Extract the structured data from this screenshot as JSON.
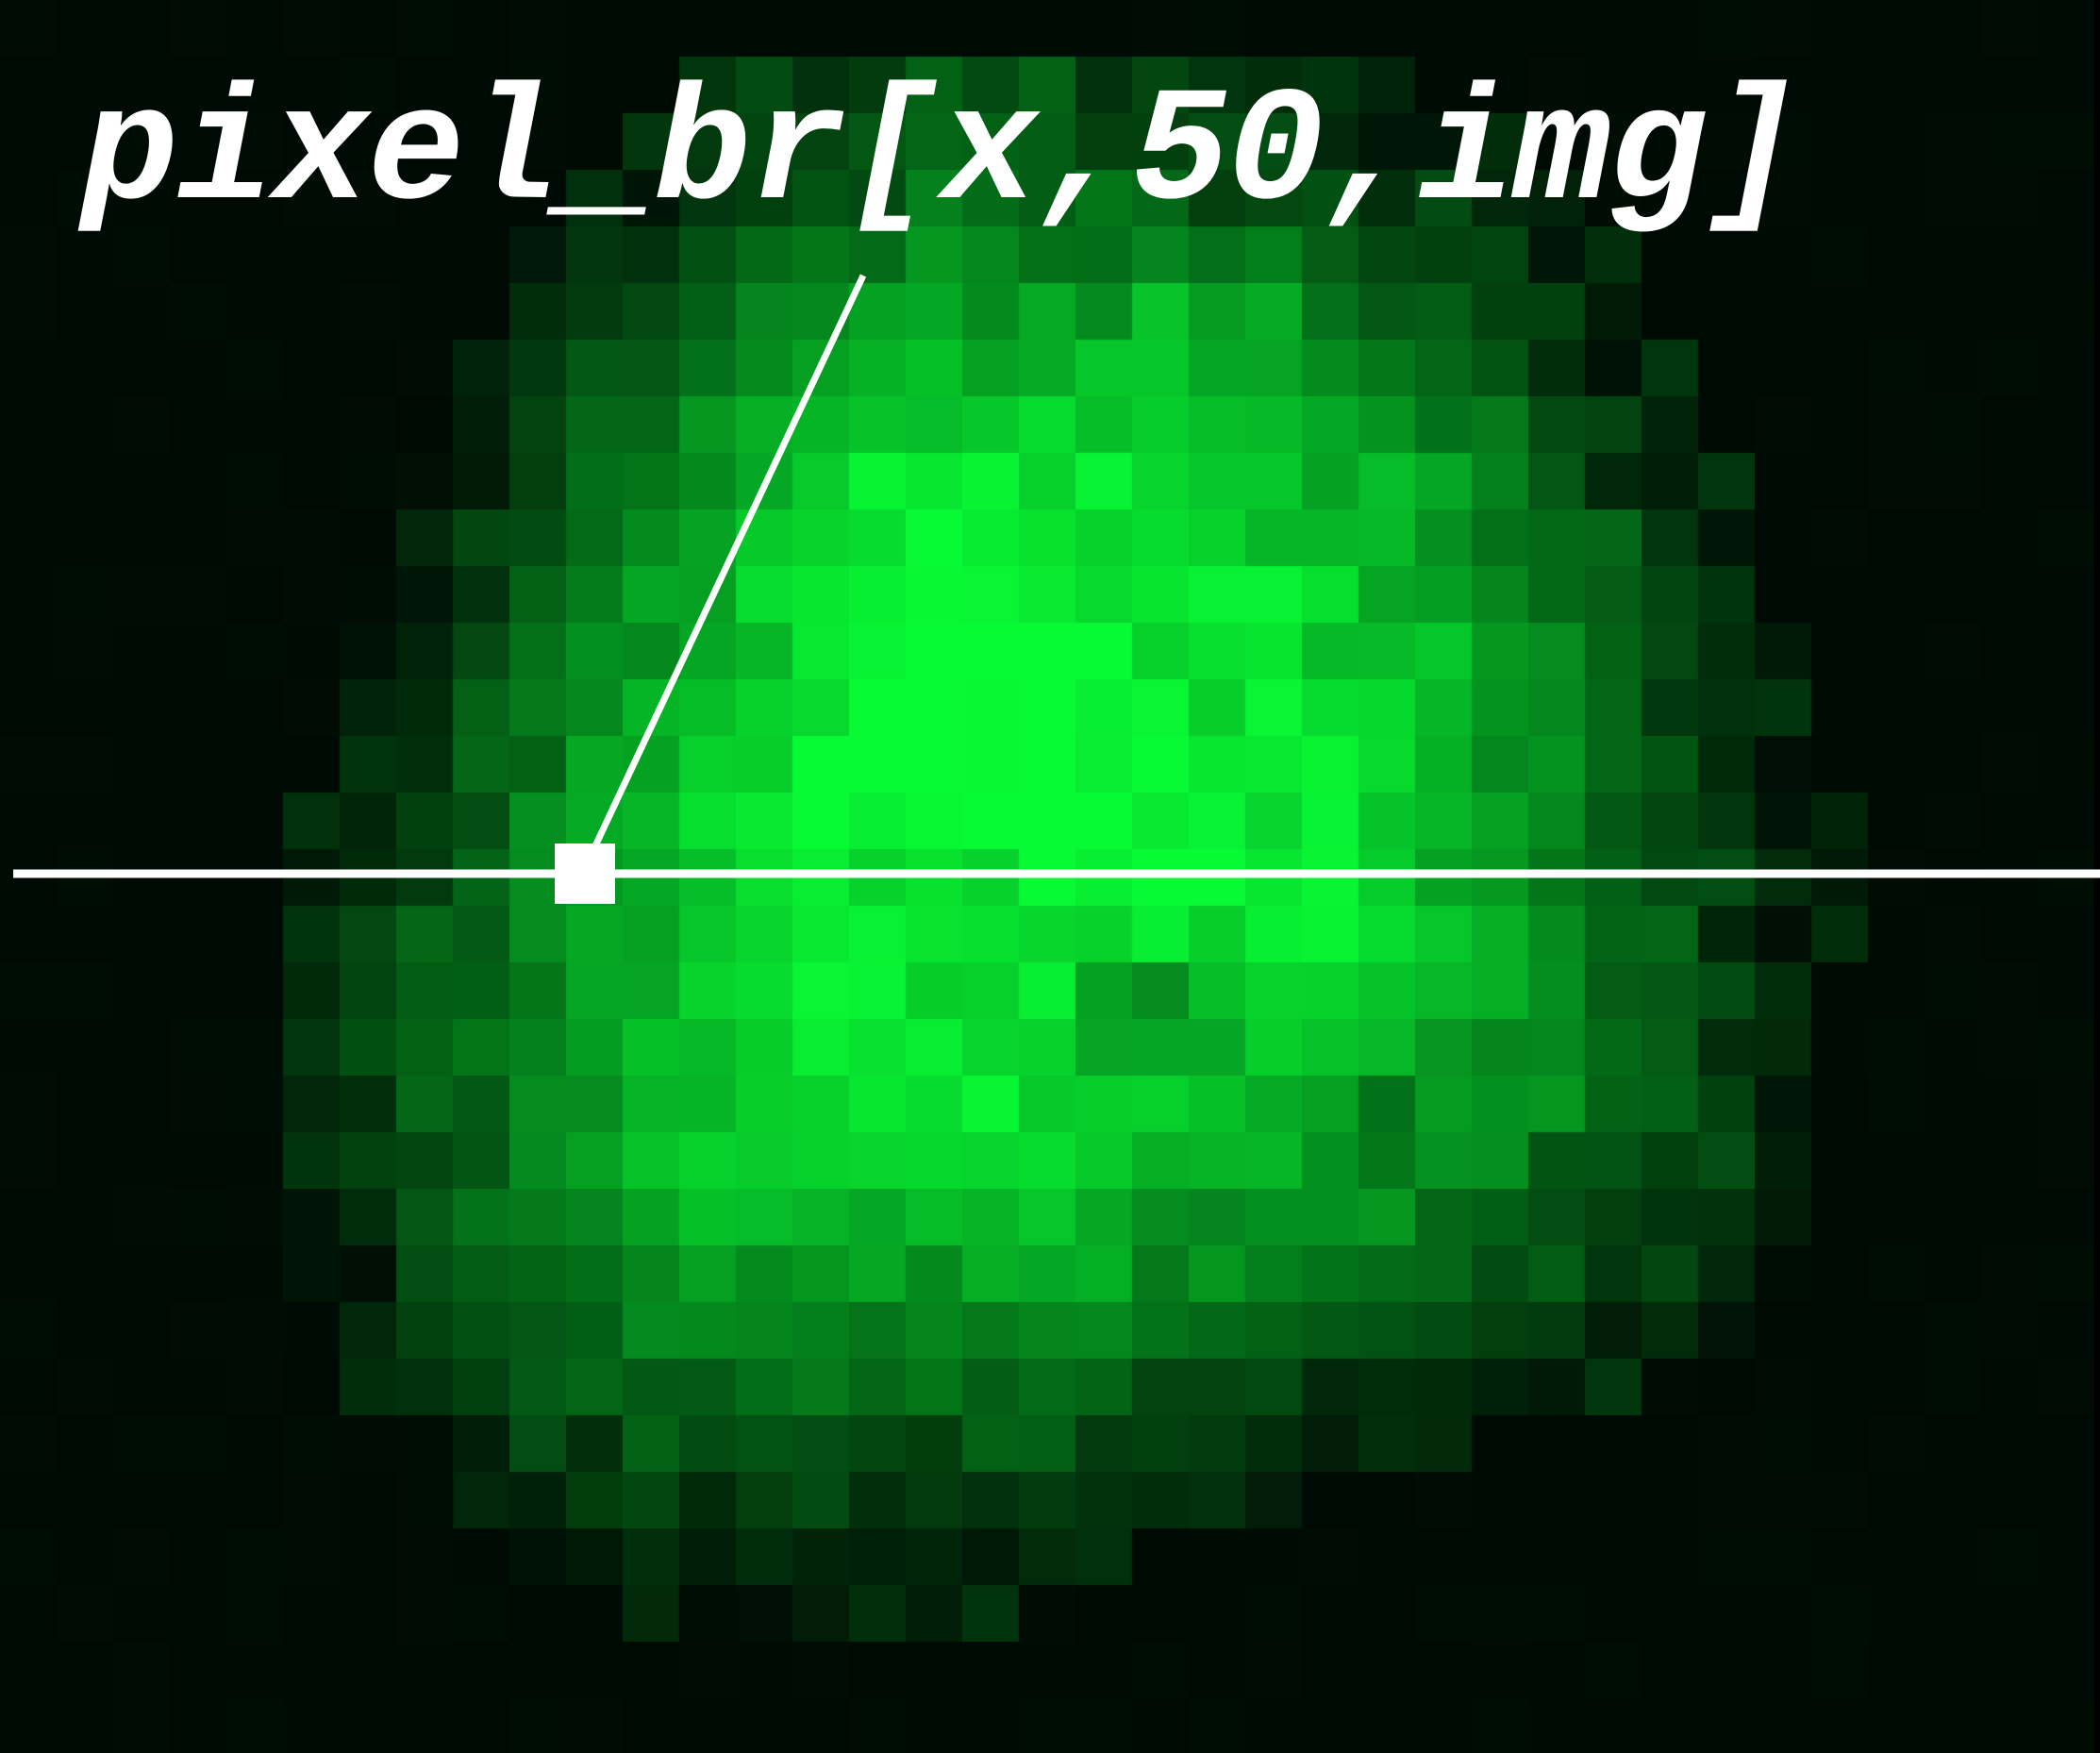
{
  "annotation": {
    "label": "pixel_br[x,50,img]"
  },
  "colors": {
    "background": "#000000",
    "annotation": "#ffffff",
    "pixel_hue": "#00ff33"
  },
  "image": {
    "grid_cols": 37,
    "grid_rows": 31,
    "brightness_rows": [
      [
        0,
        0,
        0,
        0,
        0,
        0,
        0,
        0,
        0,
        0,
        0,
        0,
        0,
        0,
        0,
        0,
        0,
        0,
        0,
        0,
        0,
        0,
        0,
        0,
        0,
        0,
        0,
        0,
        0,
        0,
        0,
        0,
        0,
        0,
        0,
        0,
        0
      ],
      [
        0,
        0,
        0,
        0,
        0,
        0,
        0,
        0,
        0,
        0,
        0,
        0,
        1,
        2,
        2,
        2,
        3,
        3,
        3,
        2,
        2,
        2,
        1,
        1,
        1,
        0,
        0,
        0,
        0,
        0,
        0,
        0,
        0,
        0,
        0,
        0,
        0
      ],
      [
        0,
        0,
        0,
        0,
        0,
        0,
        0,
        0,
        0,
        0,
        0,
        1,
        2,
        2,
        3,
        3,
        3,
        4,
        3,
        3,
        3,
        3,
        2,
        2,
        1,
        1,
        1,
        0,
        0,
        0,
        0,
        0,
        0,
        0,
        0,
        0,
        0
      ],
      [
        0,
        0,
        0,
        0,
        0,
        0,
        0,
        0,
        0,
        0,
        1,
        1,
        2,
        2,
        3,
        3,
        4,
        4,
        4,
        4,
        4,
        3,
        3,
        3,
        2,
        2,
        1,
        1,
        0,
        0,
        0,
        0,
        0,
        0,
        0,
        0,
        0
      ],
      [
        0,
        0,
        0,
        0,
        0,
        0,
        0,
        0,
        0,
        1,
        1,
        2,
        3,
        4,
        4,
        4,
        5,
        5,
        5,
        5,
        5,
        5,
        5,
        4,
        3,
        3,
        2,
        1,
        1,
        0,
        0,
        0,
        0,
        0,
        0,
        0,
        0
      ],
      [
        0,
        0,
        0,
        0,
        0,
        0,
        0,
        0,
        0,
        1,
        2,
        3,
        4,
        5,
        5,
        6,
        6,
        6,
        6,
        6,
        7,
        6,
        6,
        5,
        4,
        3,
        2,
        2,
        1,
        0,
        0,
        0,
        0,
        0,
        0,
        0,
        0
      ],
      [
        0,
        0,
        0,
        0,
        0,
        0,
        0,
        0,
        1,
        2,
        3,
        4,
        5,
        6,
        7,
        7,
        7,
        7,
        7,
        8,
        8,
        7,
        7,
        6,
        5,
        4,
        3,
        2,
        1,
        1,
        0,
        0,
        0,
        0,
        0,
        0,
        0
      ],
      [
        0,
        0,
        0,
        0,
        0,
        0,
        0,
        0,
        1,
        2,
        3,
        4,
        6,
        7,
        8,
        8,
        8,
        8,
        8,
        8,
        8,
        8,
        7,
        7,
        6,
        5,
        4,
        3,
        2,
        1,
        0,
        0,
        0,
        0,
        0,
        0,
        0
      ],
      [
        0,
        0,
        0,
        0,
        0,
        0,
        0,
        1,
        1,
        3,
        4,
        5,
        6,
        7,
        8,
        9,
        9,
        9,
        9,
        9,
        8,
        8,
        8,
        7,
        7,
        6,
        5,
        3,
        2,
        1,
        1,
        0,
        0,
        0,
        0,
        0,
        0
      ],
      [
        0,
        0,
        0,
        0,
        0,
        0,
        0,
        1,
        2,
        3,
        4,
        6,
        7,
        8,
        9,
        9,
        10,
        9,
        9,
        9,
        9,
        9,
        8,
        8,
        7,
        6,
        5,
        4,
        3,
        2,
        1,
        0,
        0,
        0,
        0,
        0,
        0
      ],
      [
        0,
        0,
        0,
        0,
        0,
        0,
        0,
        1,
        2,
        3,
        5,
        6,
        7,
        8,
        9,
        10,
        10,
        10,
        10,
        9,
        9,
        9,
        9,
        8,
        7,
        7,
        6,
        4,
        3,
        2,
        1,
        0,
        0,
        0,
        0,
        0,
        0
      ],
      [
        0,
        0,
        0,
        0,
        0,
        0,
        1,
        1,
        2,
        4,
        5,
        6,
        7,
        8,
        9,
        10,
        10,
        10,
        10,
        10,
        9,
        9,
        9,
        8,
        8,
        7,
        6,
        5,
        3,
        2,
        1,
        1,
        0,
        0,
        0,
        0,
        0
      ],
      [
        0,
        0,
        0,
        0,
        0,
        0,
        1,
        2,
        3,
        4,
        5,
        7,
        8,
        9,
        9,
        10,
        10,
        10,
        10,
        10,
        10,
        9,
        9,
        9,
        8,
        7,
        6,
        5,
        4,
        2,
        1,
        1,
        0,
        0,
        0,
        0,
        0
      ],
      [
        0,
        0,
        0,
        0,
        0,
        0,
        1,
        2,
        3,
        4,
        6,
        7,
        8,
        9,
        10,
        10,
        10,
        10,
        10,
        10,
        10,
        10,
        9,
        9,
        8,
        7,
        6,
        5,
        4,
        3,
        2,
        1,
        0,
        0,
        0,
        0,
        0
      ],
      [
        0,
        0,
        0,
        0,
        0,
        1,
        1,
        2,
        3,
        5,
        6,
        7,
        8,
        9,
        10,
        10,
        9,
        10,
        10,
        10,
        10,
        10,
        9,
        9,
        8,
        7,
        6,
        5,
        4,
        3,
        2,
        1,
        1,
        0,
        0,
        0,
        0
      ],
      [
        0,
        0,
        0,
        0,
        0,
        1,
        1,
        2,
        4,
        5,
        6,
        7,
        8,
        9,
        9,
        9,
        9,
        9,
        10,
        10,
        10,
        10,
        10,
        9,
        8,
        7,
        6,
        5,
        4,
        3,
        2,
        1,
        1,
        0,
        0,
        0,
        0
      ],
      [
        0,
        0,
        0,
        0,
        0,
        1,
        2,
        3,
        4,
        5,
        6,
        7,
        8,
        9,
        9,
        9,
        9,
        9,
        9,
        9,
        9,
        9,
        9,
        9,
        8,
        7,
        6,
        5,
        4,
        3,
        2,
        1,
        1,
        0,
        0,
        0,
        0
      ],
      [
        0,
        0,
        0,
        0,
        0,
        1,
        2,
        3,
        4,
        5,
        6,
        7,
        8,
        9,
        9,
        9,
        9,
        9,
        9,
        7,
        6,
        7,
        8,
        8,
        8,
        7,
        6,
        5,
        4,
        3,
        2,
        1,
        0,
        0,
        0,
        0,
        0
      ],
      [
        0,
        0,
        0,
        0,
        0,
        1,
        2,
        3,
        4,
        5,
        6,
        7,
        8,
        9,
        9,
        9,
        9,
        9,
        8,
        7,
        6,
        7,
        8,
        8,
        7,
        6,
        6,
        5,
        4,
        3,
        2,
        1,
        0,
        0,
        0,
        0,
        0
      ],
      [
        0,
        0,
        0,
        0,
        0,
        1,
        2,
        3,
        4,
        5,
        6,
        7,
        8,
        8,
        8,
        9,
        9,
        9,
        8,
        8,
        8,
        8,
        7,
        6,
        5,
        6,
        6,
        5,
        4,
        3,
        2,
        1,
        0,
        0,
        0,
        0,
        0
      ],
      [
        0,
        0,
        0,
        0,
        0,
        1,
        2,
        3,
        4,
        5,
        6,
        7,
        8,
        8,
        8,
        8,
        8,
        8,
        8,
        8,
        7,
        7,
        7,
        6,
        5,
        5,
        5,
        4,
        3,
        3,
        2,
        1,
        0,
        0,
        0,
        0,
        0
      ],
      [
        0,
        0,
        0,
        0,
        0,
        1,
        2,
        3,
        4,
        5,
        6,
        7,
        7,
        7,
        7,
        7,
        7,
        7,
        7,
        7,
        6,
        6,
        6,
        5,
        5,
        4,
        4,
        3,
        3,
        2,
        1,
        1,
        0,
        0,
        0,
        0,
        0
      ],
      [
        0,
        0,
        0,
        0,
        0,
        1,
        1,
        2,
        3,
        4,
        5,
        6,
        6,
        6,
        6,
        6,
        6,
        6,
        6,
        6,
        5,
        5,
        5,
        4,
        4,
        3,
        3,
        3,
        2,
        2,
        1,
        0,
        0,
        0,
        0,
        0,
        0
      ],
      [
        0,
        0,
        0,
        0,
        0,
        0,
        1,
        2,
        3,
        3,
        4,
        5,
        5,
        5,
        5,
        5,
        5,
        5,
        5,
        5,
        4,
        4,
        4,
        3,
        3,
        2,
        2,
        2,
        1,
        1,
        1,
        0,
        0,
        0,
        0,
        0,
        0
      ],
      [
        0,
        0,
        0,
        0,
        0,
        0,
        1,
        1,
        2,
        3,
        3,
        4,
        4,
        4,
        4,
        4,
        4,
        4,
        4,
        3,
        3,
        3,
        2,
        2,
        2,
        1,
        1,
        1,
        1,
        0,
        0,
        0,
        0,
        0,
        0,
        0,
        0
      ],
      [
        0,
        0,
        0,
        0,
        0,
        0,
        0,
        1,
        1,
        2,
        2,
        3,
        3,
        3,
        3,
        3,
        3,
        3,
        3,
        2,
        2,
        2,
        1,
        1,
        1,
        1,
        0,
        0,
        0,
        0,
        0,
        0,
        0,
        0,
        0,
        0,
        0
      ],
      [
        0,
        0,
        0,
        0,
        0,
        0,
        0,
        0,
        1,
        1,
        2,
        2,
        2,
        2,
        2,
        2,
        2,
        2,
        2,
        1,
        1,
        1,
        1,
        0,
        0,
        0,
        0,
        0,
        0,
        0,
        0,
        0,
        0,
        0,
        0,
        0,
        0
      ],
      [
        0,
        0,
        0,
        0,
        0,
        0,
        0,
        0,
        0,
        1,
        1,
        1,
        1,
        1,
        1,
        1,
        1,
        1,
        1,
        1,
        0,
        0,
        0,
        0,
        0,
        0,
        0,
        0,
        0,
        0,
        0,
        0,
        0,
        0,
        0,
        0,
        0
      ],
      [
        0,
        0,
        0,
        0,
        0,
        0,
        0,
        0,
        0,
        0,
        0,
        1,
        1,
        1,
        1,
        1,
        1,
        1,
        0,
        0,
        0,
        0,
        0,
        0,
        0,
        0,
        0,
        0,
        0,
        0,
        0,
        0,
        0,
        0,
        0,
        0,
        0
      ],
      [
        0,
        0,
        0,
        0,
        0,
        0,
        0,
        0,
        0,
        0,
        0,
        0,
        0,
        0,
        0,
        0,
        0,
        0,
        0,
        0,
        0,
        0,
        0,
        0,
        0,
        0,
        0,
        0,
        0,
        0,
        0,
        0,
        0,
        0,
        0,
        0,
        0
      ],
      [
        0,
        0,
        0,
        0,
        0,
        0,
        0,
        0,
        0,
        0,
        0,
        0,
        0,
        0,
        0,
        0,
        0,
        0,
        0,
        0,
        0,
        0,
        0,
        0,
        0,
        0,
        0,
        0,
        0,
        0,
        0,
        0,
        0,
        0,
        0,
        0,
        0
      ]
    ]
  }
}
